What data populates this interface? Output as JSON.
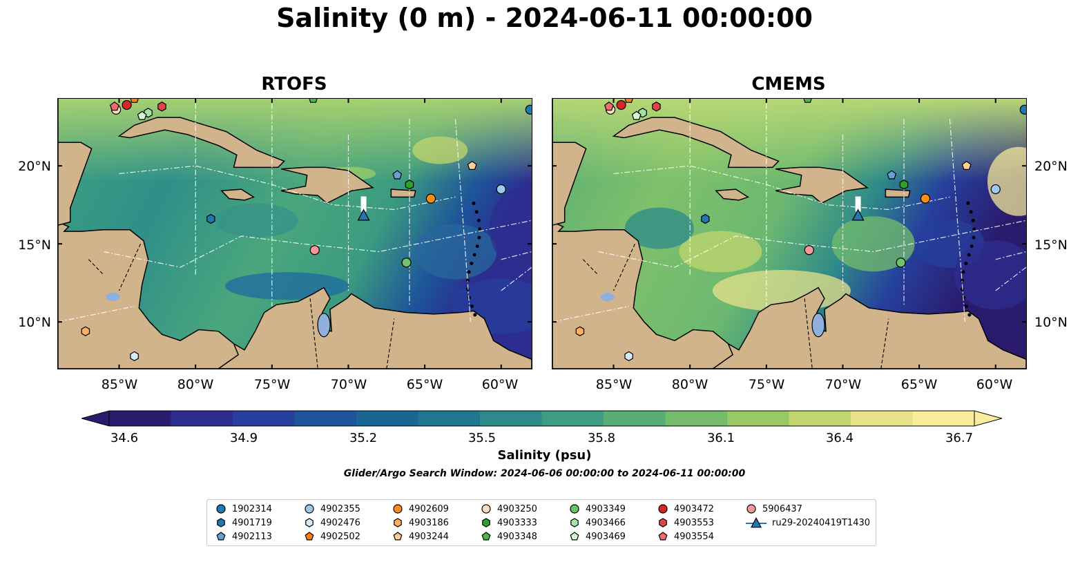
{
  "title": "Salinity (0 m) - 2024-06-11 00:00:00",
  "panels": [
    {
      "title": "RTOFS"
    },
    {
      "title": "CMEMS"
    }
  ],
  "lat_ticks": [
    "20°N",
    "15°N",
    "10°N"
  ],
  "lon_ticks": [
    "85°W",
    "80°W",
    "75°W",
    "70°W",
    "65°W",
    "60°W"
  ],
  "colorbar": {
    "ticks": [
      "34.6",
      "34.9",
      "35.2",
      "35.5",
      "35.8",
      "36.1",
      "36.4",
      "36.7"
    ],
    "label": "Salinity (psu)",
    "colors": [
      "#2a1b6e",
      "#2c2d8f",
      "#263f9c",
      "#1d549a",
      "#196593",
      "#1f778f",
      "#2c8a8a",
      "#3d9c82",
      "#56ad76",
      "#74bc6c",
      "#98c965",
      "#c2d66e",
      "#e6e28a",
      "#f9ec9a"
    ]
  },
  "search_window": "Glider/Argo Search Window: 2024-06-06 00:00:00 to 2024-06-11 00:00:00",
  "legend": [
    {
      "label": "1902314",
      "marker": "circle",
      "color": "#1f77b4"
    },
    {
      "label": "4901719",
      "marker": "hexagon",
      "color": "#1f77b4"
    },
    {
      "label": "4902113",
      "marker": "pentagon",
      "color": "#6aa0d8"
    },
    {
      "label": "4902355",
      "marker": "circle",
      "color": "#9ccaeb"
    },
    {
      "label": "4902476",
      "marker": "hexagon",
      "color": "#d4ecf7"
    },
    {
      "label": "4902502",
      "marker": "pentagon",
      "color": "#ff7f0e"
    },
    {
      "label": "4902609",
      "marker": "circle",
      "color": "#ff8c1a"
    },
    {
      "label": "4903186",
      "marker": "hexagon",
      "color": "#ffae5c"
    },
    {
      "label": "4903244",
      "marker": "pentagon",
      "color": "#ffcf96"
    },
    {
      "label": "4903250",
      "marker": "circle",
      "color": "#ffdfbf"
    },
    {
      "label": "4903333",
      "marker": "hexagon",
      "color": "#2ca02c"
    },
    {
      "label": "4903348",
      "marker": "pentagon",
      "color": "#4cb64c"
    },
    {
      "label": "4903349",
      "marker": "circle",
      "color": "#6cc46c"
    },
    {
      "label": "4903466",
      "marker": "hexagon",
      "color": "#a6e3a6"
    },
    {
      "label": "4903469",
      "marker": "pentagon",
      "color": "#d4f7d4"
    },
    {
      "label": "4903472",
      "marker": "circle",
      "color": "#d62728"
    },
    {
      "label": "4903553",
      "marker": "hexagon",
      "color": "#e04646"
    },
    {
      "label": "4903554",
      "marker": "pentagon",
      "color": "#ec6e6e"
    },
    {
      "label": "5906437",
      "marker": "circle",
      "color": "#f49a9a"
    },
    {
      "label": "ru29-20240419T1430",
      "marker": "triangle-line",
      "color": "#1f77b4"
    }
  ],
  "floats": [
    {
      "id": "1902314",
      "lon": -58.1,
      "lat": 23.6
    },
    {
      "id": "4901719",
      "lon": -79.0,
      "lat": 16.6
    },
    {
      "id": "4902113",
      "lon": -66.8,
      "lat": 19.4
    },
    {
      "id": "4902355",
      "lon": -60.0,
      "lat": 18.5
    },
    {
      "id": "4902476",
      "lon": -84.0,
      "lat": 7.8
    },
    {
      "id": "4902502",
      "lon": -84.0,
      "lat": 24.3
    },
    {
      "id": "4902609",
      "lon": -64.6,
      "lat": 17.9
    },
    {
      "id": "4903186",
      "lon": -87.2,
      "lat": 9.4
    },
    {
      "id": "4903244",
      "lon": -61.9,
      "lat": 20.0
    },
    {
      "id": "4903250",
      "lon": -85.2,
      "lat": 23.6
    },
    {
      "id": "4903333",
      "lon": -66.0,
      "lat": 18.8
    },
    {
      "id": "4903348",
      "lon": -72.3,
      "lat": 24.3
    },
    {
      "id": "4903349",
      "lon": -66.2,
      "lat": 13.8
    },
    {
      "id": "4903466",
      "lon": -83.1,
      "lat": 23.4
    },
    {
      "id": "4903469",
      "lon": -83.5,
      "lat": 23.2
    },
    {
      "id": "4903472",
      "lon": -84.5,
      "lat": 23.9
    },
    {
      "id": "4903553",
      "lon": -82.2,
      "lat": 23.8
    },
    {
      "id": "4903554",
      "lon": -85.3,
      "lat": 23.8
    },
    {
      "id": "5906437",
      "lon": -72.2,
      "lat": 14.6
    }
  ],
  "glider": {
    "id": "ru29-20240419T1430",
    "lon": -69.0,
    "lat": 16.8
  }
}
